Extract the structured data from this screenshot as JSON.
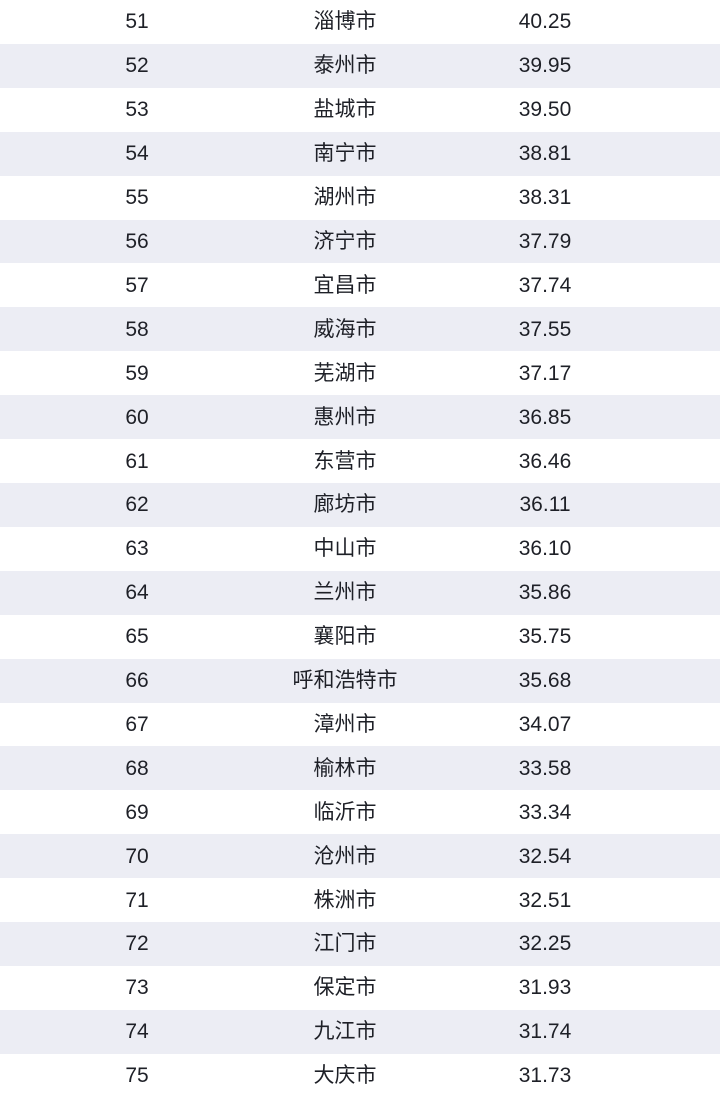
{
  "colors": {
    "row_background": "#FFFFFF",
    "row_alt_background": "#ECEDF4",
    "text": "#1E2027"
  },
  "chart_data": {
    "type": "table",
    "columns": [
      "rank",
      "city",
      "score"
    ],
    "rows": [
      [
        "51",
        "淄博市",
        "40.25"
      ],
      [
        "52",
        "泰州市",
        "39.95"
      ],
      [
        "53",
        "盐城市",
        "39.50"
      ],
      [
        "54",
        "南宁市",
        "38.81"
      ],
      [
        "55",
        "湖州市",
        "38.31"
      ],
      [
        "56",
        "济宁市",
        "37.79"
      ],
      [
        "57",
        "宜昌市",
        "37.74"
      ],
      [
        "58",
        "威海市",
        "37.55"
      ],
      [
        "59",
        "芜湖市",
        "37.17"
      ],
      [
        "60",
        "惠州市",
        "36.85"
      ],
      [
        "61",
        "东营市",
        "36.46"
      ],
      [
        "62",
        "廊坊市",
        "36.11"
      ],
      [
        "63",
        "中山市",
        "36.10"
      ],
      [
        "64",
        "兰州市",
        "35.86"
      ],
      [
        "65",
        "襄阳市",
        "35.75"
      ],
      [
        "66",
        "呼和浩特市",
        "35.68"
      ],
      [
        "67",
        "漳州市",
        "34.07"
      ],
      [
        "68",
        "榆林市",
        "33.58"
      ],
      [
        "69",
        "临沂市",
        "33.34"
      ],
      [
        "70",
        "沧州市",
        "32.54"
      ],
      [
        "71",
        "株洲市",
        "32.51"
      ],
      [
        "72",
        "江门市",
        "32.25"
      ],
      [
        "73",
        "保定市",
        "31.93"
      ],
      [
        "74",
        "九江市",
        "31.74"
      ],
      [
        "75",
        "大庆市",
        "31.73"
      ]
    ]
  }
}
